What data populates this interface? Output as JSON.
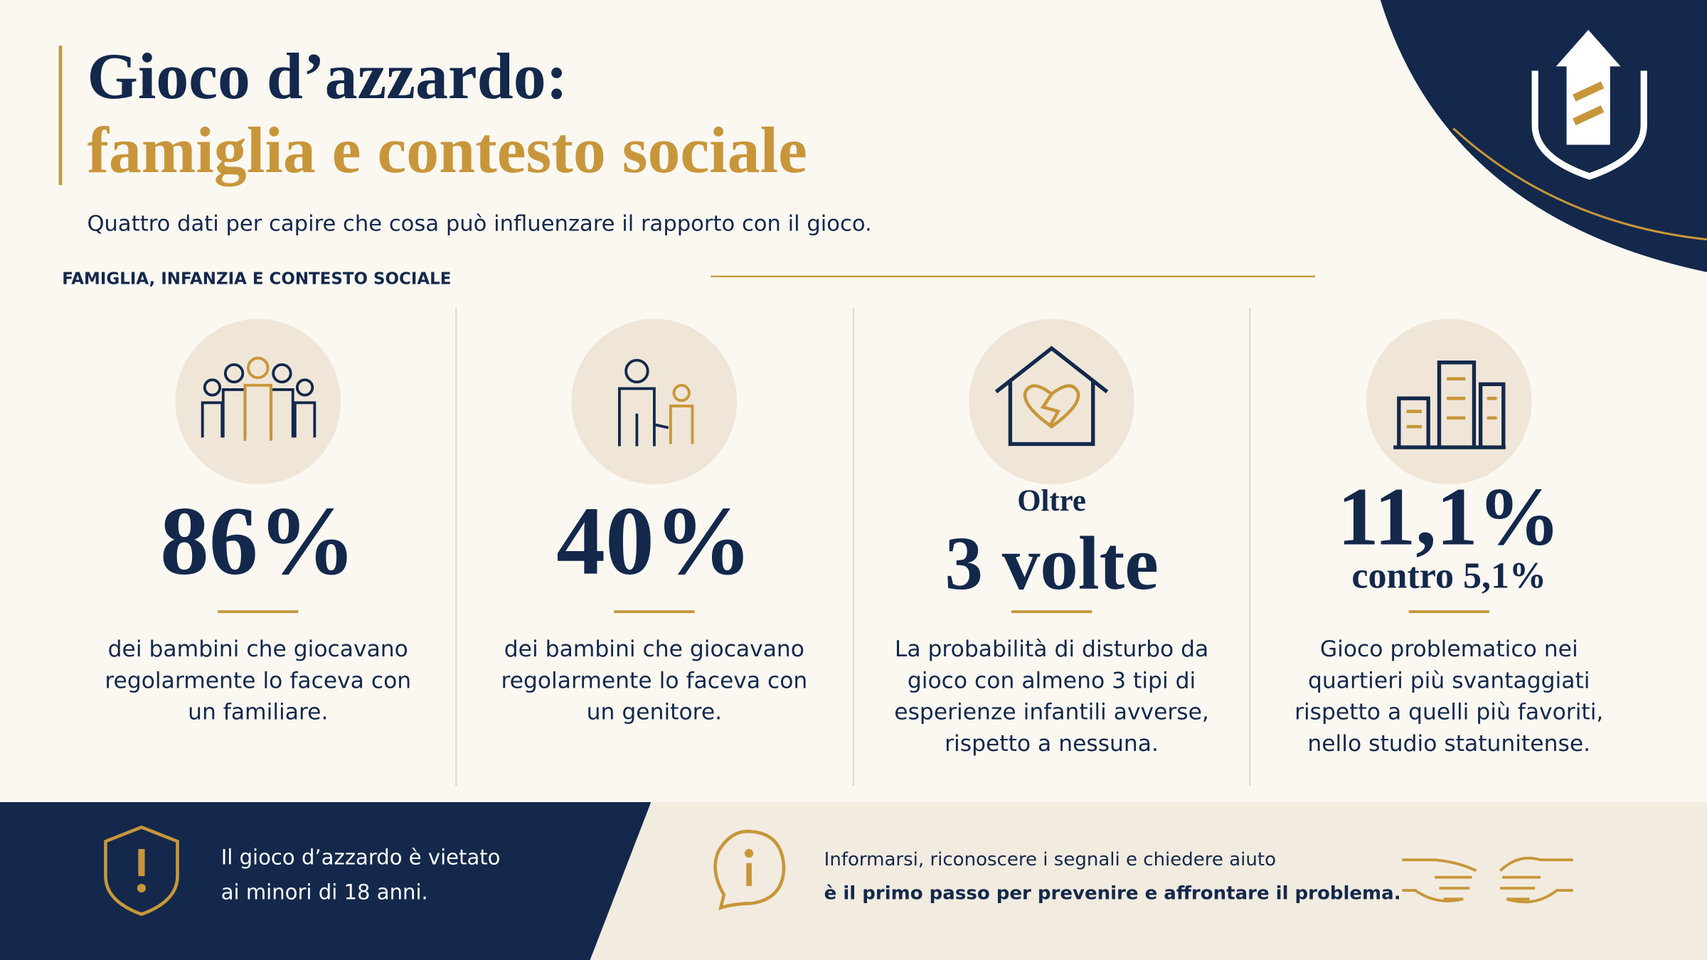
{
  "header": {
    "title_line1": "Gioco d’azzardo:",
    "title_line2": "famiglia e contesto sociale",
    "subtitle": "Quattro dati per capire che cosa può influenzare il rapporto con il gioco.",
    "section_label": "FAMIGLIA, INFANZIA E CONTESTO SOCIALE"
  },
  "stats": [
    {
      "value": "86%",
      "description": [
        "dei bambini che giocavano",
        "regolarmente lo faceva con",
        "un familiare."
      ]
    },
    {
      "value": "40%",
      "description": [
        "dei bambini che giocavano",
        "regolarmente lo faceva con",
        "un genitore."
      ]
    },
    {
      "prefix": "Oltre",
      "value": "3 volte",
      "description": [
        "La probabilità di disturbo da",
        "gioco con almeno 3 tipi di",
        "esperienze infantili avverse,",
        "rispetto a nessuna."
      ]
    },
    {
      "value": "11,1%",
      "suffix": "contro 5,1%",
      "description": [
        "Gioco problematico nei",
        "quartieri più svantaggiati",
        "rispetto a quelli più favoriti,",
        "nello studio statunitense."
      ]
    }
  ],
  "footer": {
    "warning": [
      "Il gioco d’azzardo è vietato",
      "ai minori di 18 anni."
    ],
    "info": [
      "Informarsi, riconoscere i segnali e chiedere aiuto",
      "è il primo passo per prevenire e affrontare il problema."
    ]
  }
}
